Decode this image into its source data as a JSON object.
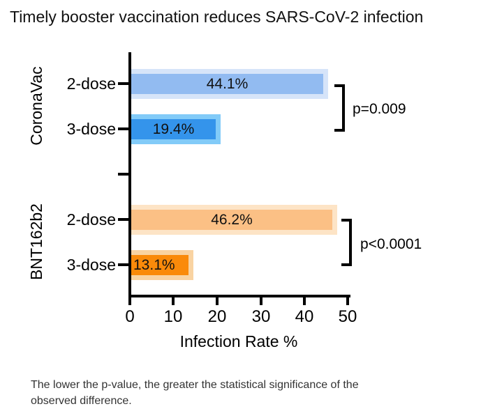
{
  "chart_data": {
    "type": "bar",
    "orientation": "horizontal",
    "title": "Timely booster vaccination reduces SARS-CoV-2 infection",
    "xlabel": "Infection Rate %",
    "xlim": [
      0,
      50
    ],
    "x_ticks": [
      0,
      10,
      20,
      30,
      40,
      50
    ],
    "grid": false,
    "axis_color": "#000000",
    "groups": [
      {
        "name": "CoronaVac",
        "p_value": "p=0.009",
        "bars": [
          {
            "label": "2-dose",
            "value": 44.1,
            "display": "44.1%",
            "fill": "#92BBF1",
            "border": "#D6E4F9"
          },
          {
            "label": "3-dose",
            "value": 19.4,
            "display": "19.4%",
            "fill": "#3494EB",
            "border": "#82CBF8"
          }
        ]
      },
      {
        "name": "BNT162b2",
        "p_value": "p<0.0001",
        "bars": [
          {
            "label": "2-dose",
            "value": 46.2,
            "display": "46.2%",
            "fill": "#FBC085",
            "border": "#FDE4C6"
          },
          {
            "label": "3-dose",
            "value": 13.1,
            "display": "13.1%",
            "fill": "#FA8A0A",
            "border": "#F9D3A2"
          }
        ]
      }
    ]
  },
  "footnote": {
    "line1": "The lower the p-value, the greater the statistical significance of the",
    "line2": "observed difference."
  }
}
